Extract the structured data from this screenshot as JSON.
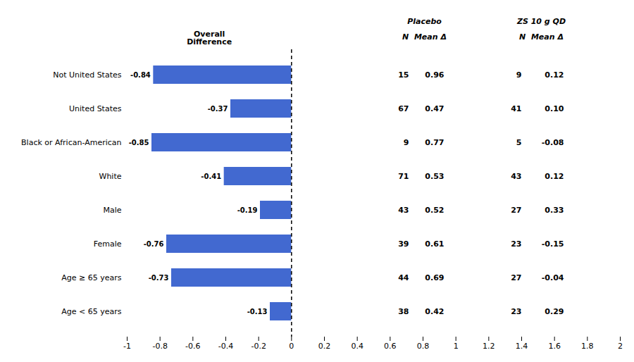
{
  "chart_data": {
    "type": "bar",
    "orientation": "horizontal",
    "categories": [
      "Not United States",
      "United States",
      "Black or African-American",
      "White",
      "Male",
      "Female",
      "Age ≥ 65 years",
      "Age < 65 years"
    ],
    "values": [
      -0.84,
      -0.37,
      -0.85,
      -0.41,
      -0.19,
      -0.76,
      -0.73,
      -0.13
    ],
    "data_labels": true,
    "xlim": [
      -1,
      2
    ],
    "xticks": [
      -1,
      -0.8,
      -0.6,
      -0.4,
      -0.2,
      0,
      0.2,
      0.4,
      0.6,
      0.8,
      1,
      1.2,
      1.4,
      1.6,
      1.8,
      2
    ],
    "grid": false,
    "reference_line": 0,
    "annotation": "Overall\nDifference",
    "table": [
      {
        "header": "Placebo",
        "subheader": "N  Mean Δ",
        "n": [
          15,
          67,
          9,
          71,
          43,
          39,
          44,
          38
        ],
        "mean": [
          0.96,
          0.47,
          0.77,
          0.53,
          0.52,
          0.61,
          0.69,
          0.42
        ],
        "mean_labels": [
          "0.96",
          "0.47",
          "0.77",
          "0.53",
          "0.52",
          "0.61",
          "0.69",
          "0.42"
        ]
      },
      {
        "header": "ZS 10 g QD",
        "subheader": "N  Mean Δ",
        "n": [
          9,
          41,
          5,
          43,
          27,
          23,
          27,
          23
        ],
        "mean": [
          0.12,
          0.1,
          -0.08,
          0.12,
          0.33,
          -0.15,
          -0.04,
          0.29
        ],
        "mean_labels": [
          "0.12",
          "0.10",
          "-0.08",
          "0.12",
          "0.33",
          "-0.15",
          "-0.04",
          "0.29"
        ]
      }
    ]
  }
}
